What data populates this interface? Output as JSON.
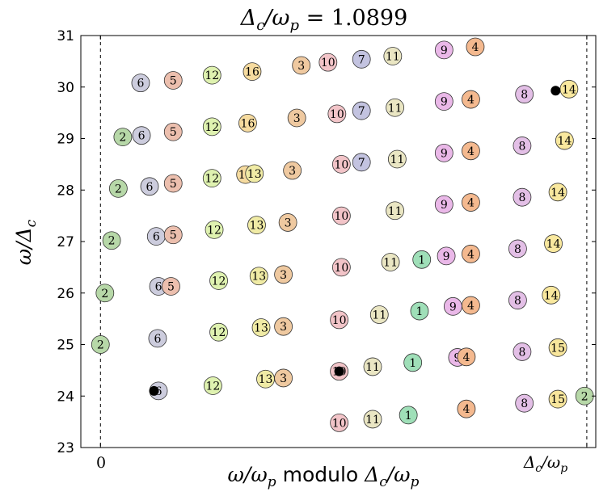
{
  "chart_data": {
    "type": "scatter",
    "title": "Δc/ωp = 1.0899",
    "xlabel": "ω/ωp modulo Δc/ωp",
    "ylabel": "ω/Δc",
    "xlim": [
      -0.044,
      1.11
    ],
    "ylim": [
      23,
      31
    ],
    "x_tick_labels": [
      "0",
      "Δc/ωp"
    ],
    "x_ticks": [
      0,
      1.0899
    ],
    "y_ticks": [
      23,
      24,
      25,
      26,
      27,
      28,
      29,
      30,
      31
    ],
    "vlines": [
      0,
      1.0899
    ],
    "grid": false,
    "family_colors": {
      "1": "#9fdfb8",
      "2": "#b7d8a8",
      "3": "#efc9a0",
      "4": "#f4b98f",
      "5": "#ecbfae",
      "6": "#ccccdd",
      "7": "#c3c3e0",
      "8": "#e3bfe6",
      "9": "#eab8e8",
      "10": "#f2c4c8",
      "11": "#eae6c3",
      "12": "#dff2b0",
      "13": "#f0eba5",
      "14": "#f9e89e",
      "15": "#f8e69c",
      "16": "#f6db9f"
    },
    "points": [
      {
        "label": "2",
        "x": 0.0,
        "y": 25.0
      },
      {
        "label": "2",
        "x": 0.01,
        "y": 26.0
      },
      {
        "label": "2",
        "x": 0.025,
        "y": 27.02
      },
      {
        "label": "2",
        "x": 0.04,
        "y": 28.03
      },
      {
        "label": "2",
        "x": 0.05,
        "y": 29.03
      },
      {
        "label": "6",
        "x": 0.092,
        "y": 29.06
      },
      {
        "label": "6",
        "x": 0.09,
        "y": 30.08
      },
      {
        "label": "6",
        "x": 0.11,
        "y": 28.07
      },
      {
        "label": "6",
        "x": 0.125,
        "y": 27.1
      },
      {
        "label": "6",
        "x": 0.13,
        "y": 26.13
      },
      {
        "label": "6",
        "x": 0.128,
        "y": 25.12
      },
      {
        "label": "6",
        "x": 0.13,
        "y": 24.1
      },
      {
        "label": "5",
        "x": 0.163,
        "y": 30.13
      },
      {
        "label": "5",
        "x": 0.163,
        "y": 29.13
      },
      {
        "label": "5",
        "x": 0.163,
        "y": 28.13
      },
      {
        "label": "5",
        "x": 0.163,
        "y": 27.13
      },
      {
        "label": "5",
        "x": 0.158,
        "y": 26.13
      },
      {
        "label": "12",
        "x": 0.25,
        "y": 30.23
      },
      {
        "label": "12",
        "x": 0.25,
        "y": 29.23
      },
      {
        "label": "12",
        "x": 0.25,
        "y": 28.23
      },
      {
        "label": "12",
        "x": 0.255,
        "y": 27.23
      },
      {
        "label": "12",
        "x": 0.265,
        "y": 26.24
      },
      {
        "label": "12",
        "x": 0.265,
        "y": 25.24
      },
      {
        "label": "12",
        "x": 0.252,
        "y": 24.2
      },
      {
        "label": "16",
        "x": 0.34,
        "y": 30.3
      },
      {
        "label": "16",
        "x": 0.33,
        "y": 29.3
      },
      {
        "label": "16",
        "x": 0.325,
        "y": 28.3
      },
      {
        "label": "13",
        "x": 0.345,
        "y": 28.32
      },
      {
        "label": "13",
        "x": 0.35,
        "y": 27.32
      },
      {
        "label": "13",
        "x": 0.355,
        "y": 26.33
      },
      {
        "label": "13",
        "x": 0.36,
        "y": 25.33
      },
      {
        "label": "13",
        "x": 0.37,
        "y": 24.33
      },
      {
        "label": "3",
        "x": 0.45,
        "y": 30.42
      },
      {
        "label": "3",
        "x": 0.44,
        "y": 29.4
      },
      {
        "label": "3",
        "x": 0.43,
        "y": 28.38
      },
      {
        "label": "3",
        "x": 0.42,
        "y": 27.37
      },
      {
        "label": "3",
        "x": 0.41,
        "y": 26.36
      },
      {
        "label": "3",
        "x": 0.41,
        "y": 25.35
      },
      {
        "label": "3",
        "x": 0.41,
        "y": 24.35
      },
      {
        "label": "10",
        "x": 0.51,
        "y": 30.48
      },
      {
        "label": "10",
        "x": 0.53,
        "y": 29.48
      },
      {
        "label": "10",
        "x": 0.54,
        "y": 28.5
      },
      {
        "label": "10",
        "x": 0.54,
        "y": 27.5
      },
      {
        "label": "10",
        "x": 0.54,
        "y": 26.5
      },
      {
        "label": "10",
        "x": 0.535,
        "y": 25.48
      },
      {
        "label": "10",
        "x": 0.535,
        "y": 24.48
      },
      {
        "label": "10",
        "x": 0.535,
        "y": 23.48
      },
      {
        "label": "7",
        "x": 0.585,
        "y": 30.54
      },
      {
        "label": "7",
        "x": 0.585,
        "y": 29.54
      },
      {
        "label": "7",
        "x": 0.585,
        "y": 28.54
      },
      {
        "label": "11",
        "x": 0.655,
        "y": 30.6
      },
      {
        "label": "11",
        "x": 0.66,
        "y": 29.6
      },
      {
        "label": "11",
        "x": 0.665,
        "y": 28.6
      },
      {
        "label": "11",
        "x": 0.66,
        "y": 27.6
      },
      {
        "label": "11",
        "x": 0.65,
        "y": 26.6
      },
      {
        "label": "11",
        "x": 0.625,
        "y": 25.58
      },
      {
        "label": "11",
        "x": 0.61,
        "y": 24.57
      },
      {
        "label": "11",
        "x": 0.61,
        "y": 23.55
      },
      {
        "label": "1",
        "x": 0.72,
        "y": 26.65
      },
      {
        "label": "1",
        "x": 0.715,
        "y": 25.65
      },
      {
        "label": "1",
        "x": 0.7,
        "y": 24.65
      },
      {
        "label": "1",
        "x": 0.69,
        "y": 23.63
      },
      {
        "label": "9",
        "x": 0.77,
        "y": 30.72
      },
      {
        "label": "9",
        "x": 0.77,
        "y": 29.72
      },
      {
        "label": "9",
        "x": 0.77,
        "y": 28.72
      },
      {
        "label": "9",
        "x": 0.77,
        "y": 27.72
      },
      {
        "label": "9",
        "x": 0.775,
        "y": 26.72
      },
      {
        "label": "9",
        "x": 0.79,
        "y": 25.74
      },
      {
        "label": "9",
        "x": 0.8,
        "y": 24.75
      },
      {
        "label": "4",
        "x": 0.84,
        "y": 30.78
      },
      {
        "label": "4",
        "x": 0.83,
        "y": 29.76
      },
      {
        "label": "4",
        "x": 0.83,
        "y": 28.76
      },
      {
        "label": "4",
        "x": 0.83,
        "y": 27.76
      },
      {
        "label": "4",
        "x": 0.83,
        "y": 26.76
      },
      {
        "label": "4",
        "x": 0.83,
        "y": 25.76
      },
      {
        "label": "4",
        "x": 0.82,
        "y": 24.76
      },
      {
        "label": "4",
        "x": 0.82,
        "y": 23.75
      },
      {
        "label": "8",
        "x": 0.95,
        "y": 29.86
      },
      {
        "label": "8",
        "x": 0.945,
        "y": 28.86
      },
      {
        "label": "8",
        "x": 0.945,
        "y": 27.86
      },
      {
        "label": "8",
        "x": 0.935,
        "y": 26.86
      },
      {
        "label": "8",
        "x": 0.935,
        "y": 25.86
      },
      {
        "label": "8",
        "x": 0.945,
        "y": 24.86
      },
      {
        "label": "8",
        "x": 0.95,
        "y": 23.86
      },
      {
        "label": "14",
        "x": 1.05,
        "y": 29.96
      },
      {
        "label": "14",
        "x": 1.04,
        "y": 28.96
      },
      {
        "label": "14",
        "x": 1.025,
        "y": 27.96
      },
      {
        "label": "14",
        "x": 1.015,
        "y": 26.96
      },
      {
        "label": "14",
        "x": 1.01,
        "y": 25.96
      },
      {
        "label": "15",
        "x": 1.025,
        "y": 24.94
      },
      {
        "label": "15",
        "x": 1.025,
        "y": 23.94
      },
      {
        "label": "2",
        "x": 1.085,
        "y": 24.0
      }
    ],
    "dots": [
      {
        "x": 0.12,
        "y": 24.1
      },
      {
        "x": 0.535,
        "y": 24.48
      },
      {
        "x": 1.02,
        "y": 29.93
      }
    ]
  }
}
